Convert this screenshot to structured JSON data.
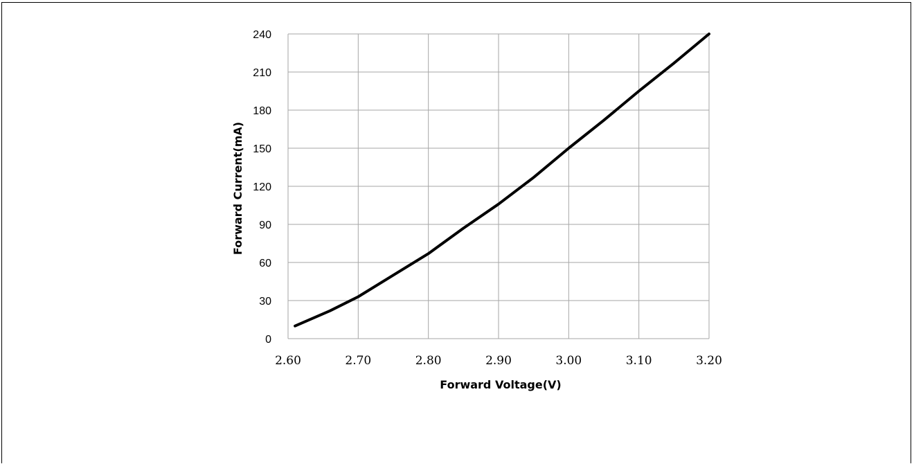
{
  "chart_data": {
    "type": "line",
    "title": "",
    "xlabel": "Forward Voltage(V)",
    "ylabel": "Forward Current(mA)",
    "xlim": [
      2.6,
      3.2
    ],
    "ylim": [
      0,
      240
    ],
    "x_ticks": [
      "2.60",
      "2.70",
      "2.80",
      "2.90",
      "3.00",
      "3.10",
      "3.20"
    ],
    "y_ticks": [
      "0",
      "30",
      "60",
      "90",
      "120",
      "150",
      "180",
      "210",
      "240"
    ],
    "grid": true,
    "line_color": "#000000",
    "grid_color": "#a6a6a6",
    "series": [
      {
        "x": [
          2.61,
          2.66,
          2.7,
          2.75,
          2.8,
          2.85,
          2.9,
          2.95,
          3.0,
          3.05,
          3.1,
          3.15,
          3.2
        ],
        "y": [
          10,
          22,
          33,
          50,
          67,
          87,
          106,
          127,
          150,
          172,
          195,
          217,
          240
        ]
      }
    ]
  }
}
